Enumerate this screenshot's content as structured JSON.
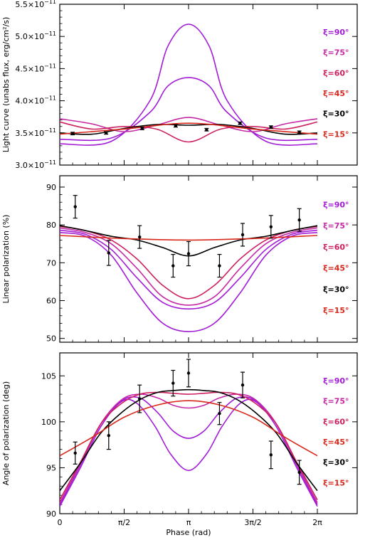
{
  "chart_data": [
    {
      "type": "line",
      "ylabel": "Light curve (unabs flux, erg/cm²/s)",
      "xlabel": "",
      "ylim": [
        3e-11,
        5.5e-11
      ],
      "y_tick_values": [
        3e-11,
        3.5e-11,
        4e-11,
        4.5e-11,
        5e-11,
        5.5e-11
      ],
      "y_tick_labels": [
        {
          "mant": "3.0×10",
          "exp": "−11"
        },
        {
          "mant": "3.5×10",
          "exp": "−11"
        },
        {
          "mant": "4.0×10",
          "exp": "−11"
        },
        {
          "mant": "4.5×10",
          "exp": "−11"
        },
        {
          "mant": "5.0×10",
          "exp": "−11"
        },
        {
          "mant": "5.5×10",
          "exp": "−11"
        }
      ],
      "legend": [
        {
          "text": "ξ=90°",
          "color": "#a21cd6"
        },
        {
          "text": "ξ=75°",
          "color": "#c42aa6"
        },
        {
          "text": "ξ=60°",
          "color": "#cc2060"
        },
        {
          "text": "ξ=45°",
          "color": "#d8281c"
        },
        {
          "text": "ξ=30°",
          "color": "#000000"
        },
        {
          "text": "ξ=15°",
          "color": "#d8281c"
        }
      ],
      "series": [
        {
          "name": "ξ=90°",
          "color": "#a21cd6",
          "x": [
            0,
            0.2,
            0.35,
            0.42,
            0.5,
            0.58,
            0.65,
            0.8,
            1.0
          ],
          "y": [
            3.33e-11,
            3.37e-11,
            4e-11,
            4.85e-11,
            5.19e-11,
            4.85e-11,
            4e-11,
            3.37e-11,
            3.33e-11
          ]
        },
        {
          "name": "ξ=75°",
          "color": "#a21cd6",
          "x": [
            0,
            0.2,
            0.35,
            0.42,
            0.5,
            0.58,
            0.65,
            0.8,
            1.0
          ],
          "y": [
            3.4e-11,
            3.42e-11,
            3.82e-11,
            4.23e-11,
            4.36e-11,
            4.23e-11,
            3.82e-11,
            3.42e-11,
            3.4e-11
          ]
        },
        {
          "name": "ξ=60°",
          "color": "#c42aa6",
          "x": [
            0,
            0.125,
            0.25,
            0.375,
            0.5,
            0.625,
            0.75,
            0.875,
            1.0
          ],
          "y": [
            3.72e-11,
            3.64e-11,
            3.52e-11,
            3.62e-11,
            3.74e-11,
            3.62e-11,
            3.52e-11,
            3.64e-11,
            3.72e-11
          ]
        },
        {
          "name": "ξ=45°",
          "color": "#cc2060",
          "x": [
            0,
            0.125,
            0.25,
            0.375,
            0.5,
            0.625,
            0.75,
            0.875,
            1.0
          ],
          "y": [
            3.67e-11,
            3.56e-11,
            3.6e-11,
            3.56e-11,
            3.36e-11,
            3.56e-11,
            3.6e-11,
            3.56e-11,
            3.67e-11
          ]
        },
        {
          "name": "ξ=30°",
          "color": "#000000",
          "x": [
            0,
            0.125,
            0.25,
            0.375,
            0.5,
            0.625,
            0.75,
            0.875,
            1.0
          ],
          "y": [
            3.5e-11,
            3.48e-11,
            3.57e-11,
            3.63e-11,
            3.62e-11,
            3.63e-11,
            3.57e-11,
            3.48e-11,
            3.5e-11
          ]
        },
        {
          "name": "ξ=15°",
          "color": "#d8281c",
          "x": [
            0,
            0.25,
            0.5,
            0.75,
            1.0
          ],
          "y": [
            3.48e-11,
            3.56e-11,
            3.65e-11,
            3.56e-11,
            3.48e-11
          ]
        }
      ],
      "data_points": {
        "x": [
          0.05,
          0.18,
          0.32,
          0.45,
          0.57,
          0.7,
          0.82,
          0.93
        ],
        "y": [
          3.49e-11,
          3.5e-11,
          3.57e-11,
          3.61e-11,
          3.55e-11,
          3.65e-11,
          3.59e-11,
          3.51e-11
        ],
        "err": [
          2e-13,
          2e-13,
          2e-13,
          2e-13,
          2e-13,
          2e-13,
          2e-13,
          2e-13
        ]
      }
    },
    {
      "type": "line",
      "ylabel": "Linear polarization (%)",
      "xlabel": "",
      "ylim": [
        49,
        93
      ],
      "y_tick_values": [
        50,
        60,
        70,
        80,
        90
      ],
      "y_tick_labels": [
        {
          "mant": "50"
        },
        {
          "mant": "60"
        },
        {
          "mant": "70"
        },
        {
          "mant": "80"
        },
        {
          "mant": "90"
        }
      ],
      "legend": [
        {
          "text": "ξ=90°",
          "color": "#a21cd6"
        },
        {
          "text": "ξ=75°",
          "color": "#c42aa6"
        },
        {
          "text": "ξ=60°",
          "color": "#cc2060"
        },
        {
          "text": "ξ=45°",
          "color": "#d8281c"
        },
        {
          "text": "ξ=30°",
          "color": "#000000"
        },
        {
          "text": "ξ=15°",
          "color": "#d8281c"
        }
      ],
      "series": [
        {
          "name": "ξ=90°",
          "color": "#a21cd6",
          "x": [
            0,
            0.1,
            0.2,
            0.3,
            0.4,
            0.5,
            0.6,
            0.7,
            0.8,
            0.9,
            1.0
          ],
          "y": [
            78.0,
            77.0,
            72.0,
            62.0,
            54.0,
            51.8,
            54.0,
            62.0,
            72.0,
            77.0,
            78.0
          ]
        },
        {
          "name": "ξ=75°",
          "color": "#a21cd6",
          "x": [
            0,
            0.1,
            0.2,
            0.3,
            0.4,
            0.5,
            0.6,
            0.7,
            0.8,
            0.9,
            1.0
          ],
          "y": [
            78.6,
            77.5,
            73.5,
            66.0,
            59.5,
            57.8,
            59.5,
            66.0,
            73.5,
            77.5,
            78.6
          ]
        },
        {
          "name": "ξ=60°",
          "color": "#c42aa6",
          "x": [
            0,
            0.1,
            0.2,
            0.3,
            0.4,
            0.5,
            0.6,
            0.7,
            0.8,
            0.9,
            1.0
          ],
          "y": [
            79.2,
            78.0,
            75.0,
            68.5,
            61.0,
            58.8,
            61.0,
            68.5,
            75.0,
            78.0,
            79.2
          ]
        },
        {
          "name": "ξ=45°",
          "color": "#cc2060",
          "x": [
            0,
            0.1,
            0.2,
            0.3,
            0.4,
            0.5,
            0.6,
            0.7,
            0.8,
            0.9,
            1.0
          ],
          "y": [
            79.6,
            78.5,
            76.0,
            71.0,
            64.0,
            60.5,
            64.0,
            71.0,
            76.0,
            78.5,
            79.6
          ]
        },
        {
          "name": "ξ=30°",
          "color": "#000000",
          "x": [
            0,
            0.1,
            0.2,
            0.3,
            0.4,
            0.5,
            0.6,
            0.7,
            0.8,
            0.9,
            1.0
          ],
          "y": [
            79.8,
            78.5,
            77.0,
            76.0,
            74.0,
            71.8,
            74.0,
            76.0,
            77.0,
            78.5,
            79.8
          ]
        },
        {
          "name": "ξ=15°",
          "color": "#d8281c",
          "x": [
            0,
            0.25,
            0.5,
            0.75,
            1.0
          ],
          "y": [
            77.2,
            76.4,
            76.0,
            76.4,
            77.2
          ]
        }
      ],
      "data_points": {
        "x": [
          0.06,
          0.19,
          0.31,
          0.44,
          0.5,
          0.62,
          0.71,
          0.82,
          0.93
        ],
        "y": [
          84.8,
          72.6,
          76.8,
          69.2,
          72.4,
          69.2,
          77.4,
          79.5,
          81.3
        ],
        "err": [
          3.0,
          3.3,
          3.0,
          3.0,
          3.2,
          3.0,
          3.0,
          3.0,
          3.0
        ]
      }
    },
    {
      "type": "line",
      "ylabel": "Angle of polarization (deg)",
      "xlabel": "Phase (rad)",
      "ylim": [
        90,
        107.5
      ],
      "y_tick_values": [
        90,
        95,
        100,
        105
      ],
      "y_tick_labels": [
        {
          "mant": "90"
        },
        {
          "mant": "95"
        },
        {
          "mant": "100"
        },
        {
          "mant": "105"
        }
      ],
      "x_tick_values": [
        0,
        0.25,
        0.5,
        0.75,
        1.0
      ],
      "x_tick_labels": [
        "0",
        "π/2",
        "π",
        "3π/2",
        "2π"
      ],
      "legend": [
        {
          "text": "ξ=90°",
          "color": "#a21cd6"
        },
        {
          "text": "ξ=75°",
          "color": "#c42aa6"
        },
        {
          "text": "ξ=60°",
          "color": "#cc2060"
        },
        {
          "text": "ξ=45°",
          "color": "#d8281c"
        },
        {
          "text": "ξ=30°",
          "color": "#000000"
        },
        {
          "text": "ξ=15°",
          "color": "#d8281c"
        }
      ],
      "series": [
        {
          "name": "ξ=90°",
          "color": "#a21cd6",
          "x": [
            0,
            0.08,
            0.16,
            0.24,
            0.3,
            0.37,
            0.43,
            0.5,
            0.57,
            0.63,
            0.7,
            0.76,
            0.84,
            0.92,
            1.0
          ],
          "y": [
            90.8,
            95.0,
            99.5,
            102.2,
            102.0,
            99.5,
            96.5,
            94.7,
            96.5,
            99.5,
            102.0,
            102.2,
            99.5,
            95.0,
            90.8
          ]
        },
        {
          "name": "ξ=75°",
          "color": "#a21cd6",
          "x": [
            0,
            0.08,
            0.16,
            0.24,
            0.31,
            0.38,
            0.44,
            0.5,
            0.56,
            0.62,
            0.69,
            0.76,
            0.84,
            0.92,
            1.0
          ],
          "y": [
            91.0,
            95.3,
            99.8,
            102.3,
            102.6,
            101.0,
            99.0,
            98.2,
            99.0,
            101.0,
            102.6,
            102.3,
            99.8,
            95.3,
            91.0
          ]
        },
        {
          "name": "ξ=60°",
          "color": "#c42aa6",
          "x": [
            0,
            0.08,
            0.16,
            0.24,
            0.31,
            0.38,
            0.44,
            0.5,
            0.56,
            0.62,
            0.69,
            0.76,
            0.84,
            0.92,
            1.0
          ],
          "y": [
            91.2,
            95.4,
            99.8,
            102.4,
            103.0,
            102.6,
            101.8,
            101.5,
            101.8,
            102.6,
            103.0,
            102.4,
            99.8,
            95.4,
            91.2
          ]
        },
        {
          "name": "ξ=45°",
          "color": "#cc2060",
          "x": [
            0,
            0.08,
            0.16,
            0.24,
            0.31,
            0.38,
            0.44,
            0.5,
            0.56,
            0.62,
            0.69,
            0.76,
            0.84,
            0.92,
            1.0
          ],
          "y": [
            91.5,
            95.6,
            99.8,
            102.0,
            103.0,
            103.2,
            103.1,
            103.0,
            103.1,
            103.2,
            103.0,
            102.0,
            99.8,
            95.6,
            91.5
          ]
        },
        {
          "name": "ξ=30°",
          "color": "#000000",
          "x": [
            0,
            0.08,
            0.16,
            0.24,
            0.31,
            0.38,
            0.44,
            0.5,
            0.56,
            0.62,
            0.69,
            0.76,
            0.84,
            0.92,
            1.0
          ],
          "y": [
            92.5,
            95.5,
            98.8,
            101.0,
            102.4,
            103.2,
            103.4,
            103.5,
            103.4,
            103.2,
            102.4,
            101.0,
            98.8,
            95.5,
            92.5
          ]
        },
        {
          "name": "ξ=15°",
          "color": "#d8281c",
          "x": [
            0,
            0.125,
            0.25,
            0.375,
            0.5,
            0.625,
            0.75,
            0.875,
            1.0
          ],
          "y": [
            96.3,
            98.3,
            100.5,
            101.8,
            102.3,
            101.8,
            100.5,
            98.3,
            96.3
          ]
        }
      ],
      "data_points": {
        "x": [
          0.06,
          0.19,
          0.31,
          0.44,
          0.5,
          0.62,
          0.71,
          0.82,
          0.93
        ],
        "y": [
          96.6,
          98.5,
          102.5,
          104.2,
          105.3,
          100.9,
          104.0,
          96.4,
          94.5
        ],
        "err": [
          1.2,
          1.5,
          1.5,
          1.4,
          1.5,
          1.2,
          1.4,
          1.5,
          1.3
        ]
      }
    }
  ]
}
